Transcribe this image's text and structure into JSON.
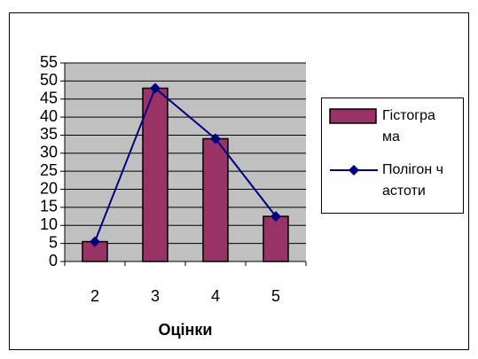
{
  "chart_data": {
    "type": "bar-line",
    "categories": [
      "2",
      "3",
      "4",
      "5"
    ],
    "series": [
      {
        "name": "Гістограма",
        "color": "#993366",
        "values": [
          5.5,
          48,
          34,
          12.5
        ],
        "kind": "bar"
      },
      {
        "name": "Полігон частоти",
        "color": "#000080",
        "values": [
          5.5,
          48,
          34,
          12.5
        ],
        "kind": "line"
      }
    ],
    "x_label": "Оцінки",
    "ylim": [
      0,
      55
    ],
    "yticks": [
      0,
      5,
      10,
      15,
      20,
      25,
      30,
      35,
      40,
      45,
      50,
      55
    ],
    "grid": true,
    "legend": "right"
  }
}
